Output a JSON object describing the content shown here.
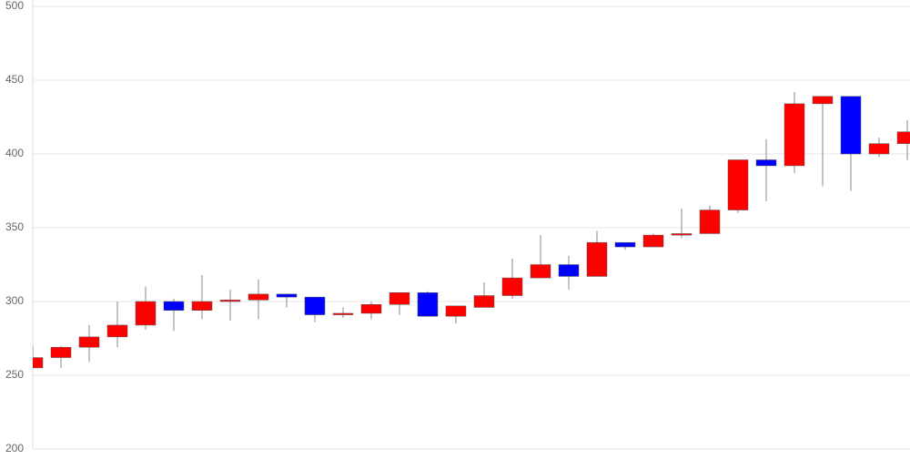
{
  "chart_data": {
    "type": "candlestick",
    "open": [
      255,
      262,
      269,
      276,
      284,
      300,
      294,
      300,
      301,
      305,
      303,
      291,
      292,
      298,
      306,
      290,
      296,
      304,
      316,
      325,
      317,
      340,
      337,
      345,
      346,
      362,
      396,
      392,
      434,
      439,
      400,
      407
    ],
    "high": [
      270,
      270,
      284,
      300,
      310,
      302,
      318,
      308,
      315,
      305,
      303,
      296,
      300,
      306,
      307,
      297,
      313,
      329,
      345,
      331,
      348,
      340,
      346,
      363,
      365,
      396,
      410,
      442,
      439,
      439,
      411,
      423
    ],
    "low": [
      255,
      255,
      259,
      269,
      281,
      280,
      288,
      287,
      288,
      296,
      286,
      289,
      288,
      291,
      290,
      285,
      296,
      302,
      316,
      308,
      317,
      335,
      337,
      343,
      346,
      360,
      368,
      387,
      378,
      375,
      398,
      396
    ],
    "close": [
      262,
      269,
      276,
      284,
      300,
      294,
      300,
      301,
      305,
      303,
      291,
      292,
      298,
      306,
      290,
      297,
      304,
      316,
      325,
      317,
      340,
      337,
      345,
      346,
      362,
      396,
      392,
      434,
      439,
      400,
      407,
      415
    ],
    "up_color": "#ff0000",
    "down_color": "#0000ff",
    "ylim": [
      200,
      500
    ],
    "yticks": [
      200,
      250,
      300,
      350,
      400,
      450,
      500
    ],
    "grid": true
  }
}
